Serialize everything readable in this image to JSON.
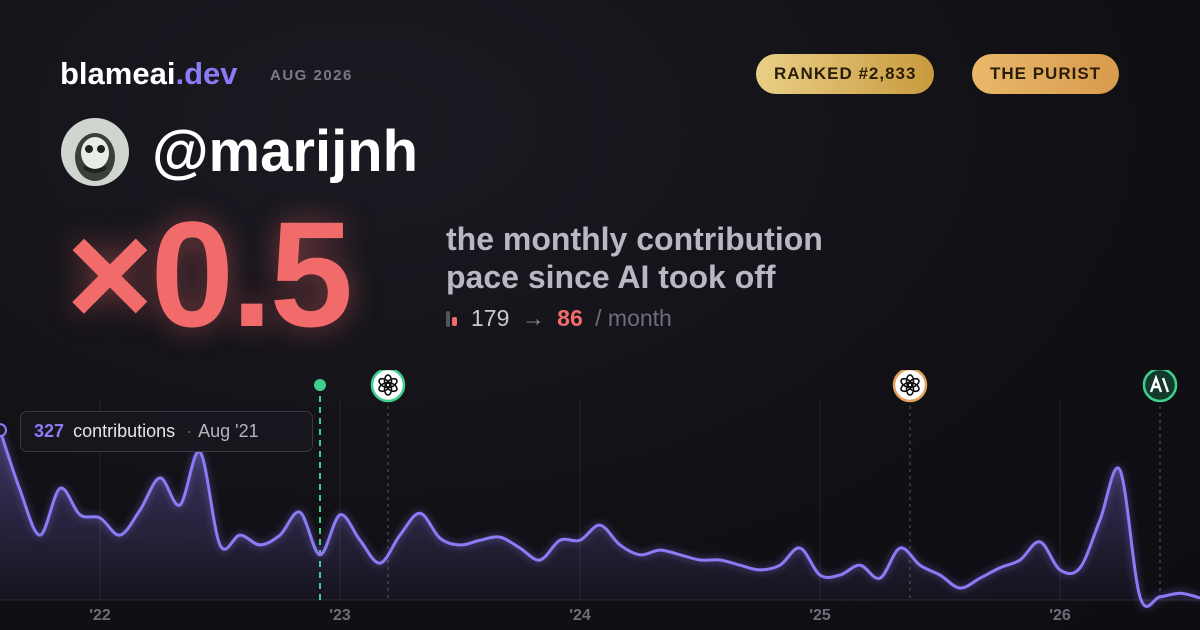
{
  "header": {
    "site": "blameai",
    "site_tld": ".dev",
    "period": "AUG 2026",
    "badges": [
      "RANKED #2,833",
      "THE PURIST"
    ]
  },
  "user": {
    "handle": "@marijnh"
  },
  "headline": {
    "multiplier": "×0.5",
    "caption_line1": "the monthly contribution",
    "caption_line2": "pace since AI took off",
    "before": "179",
    "arrow": "→",
    "after": "86",
    "unit": "/ month"
  },
  "chart_data": {
    "type": "line",
    "categories": [
      null,
      null,
      null,
      null,
      null,
      "'22",
      null,
      null,
      null,
      null,
      null,
      null,
      null,
      null,
      null,
      null,
      null,
      "'23",
      null,
      null,
      null,
      null,
      null,
      null,
      null,
      null,
      null,
      null,
      null,
      "'24",
      null,
      null,
      null,
      null,
      null,
      null,
      null,
      null,
      null,
      null,
      null,
      "'25",
      null,
      null,
      null,
      null,
      null,
      null,
      null,
      null,
      null,
      null,
      null,
      "'26",
      null,
      null,
      null,
      null,
      null,
      null,
      null
    ],
    "values": [
      327,
      212,
      125,
      215,
      164,
      158,
      125,
      173,
      235,
      183,
      285,
      106,
      125,
      106,
      125,
      169,
      87,
      164,
      115,
      71,
      125,
      167,
      119,
      106,
      115,
      121,
      100,
      77,
      115,
      115,
      144,
      106,
      87,
      96,
      87,
      77,
      77,
      67,
      58,
      67,
      100,
      48,
      48,
      67,
      42,
      100,
      67,
      48,
      23,
      42,
      62,
      77,
      112,
      58,
      62,
      154,
      250,
      6,
      6,
      13,
      4
    ],
    "color": "#8b7cf6",
    "ylim": [
      0,
      385
    ],
    "events": [
      16,
      19.4,
      45.5,
      58
    ],
    "tooltip": {
      "label": "contributions",
      "date": "Aug '21"
    }
  }
}
